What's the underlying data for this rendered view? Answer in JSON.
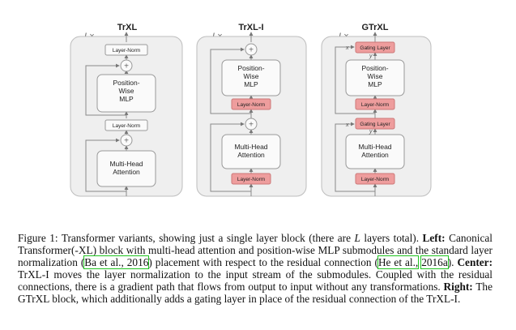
{
  "figure": {
    "panels": [
      {
        "title": "TrXL",
        "repeat": "L×",
        "blocks": {
          "top_norm": "Layer-Norm",
          "mlp": "Position-\nWise\nMLP",
          "mid_norm": "Layer-Norm",
          "attn": "Multi-Head\nAttention"
        }
      },
      {
        "title": "TrXL-I",
        "repeat": "L×",
        "blocks": {
          "mlp": "Position-\nWise\nMLP",
          "norm1": "Layer-Norm",
          "attn": "Multi-Head\nAttention",
          "norm2": "Layer-Norm"
        }
      },
      {
        "title": "GTrXL",
        "repeat": "L×",
        "blocks": {
          "gate1": "Gating Layer",
          "y1": "y",
          "x1": "x",
          "mlp": "Position-\nWise\nMLP",
          "norm1": "Layer-Norm",
          "gate2": "Gating Layer",
          "y2": "y",
          "x2": "x",
          "attn": "Multi-Head\nAttention",
          "norm2": "Layer-Norm"
        }
      }
    ],
    "colors": {
      "panel_bg": "#efefef",
      "panel_border": "#bdbdbd",
      "box_fill": "#fafafa",
      "pink": "#ee9d9d",
      "line": "#888888"
    }
  },
  "caption": {
    "label": "Figure 1:",
    "text1": " Transformer variants, showing just a single layer block (there are ",
    "L": "L",
    "text2": " layers total). ",
    "left_label": "Left:",
    "text3": " Canonical Transformer(-XL) block with multi-head attention and position-wise MLP submodules and the standard layer normalization (",
    "cite1": "Ba et al., 2016",
    "text4": ") placement with respect to the residual connection (",
    "cite2a": "He et al.,",
    "cite2b": "2016a",
    "text5": "). ",
    "center_label": "Center:",
    "text6": " TrXL-I moves the layer normalization to the input stream of the submodules. Coupled with the residual connections, there is a gradient path that flows from output to input without any transformations. ",
    "right_label": "Right:",
    "text7": " The GTrXL block, which additionally adds a gating layer in place of the residual connection of the TrXL-I."
  }
}
